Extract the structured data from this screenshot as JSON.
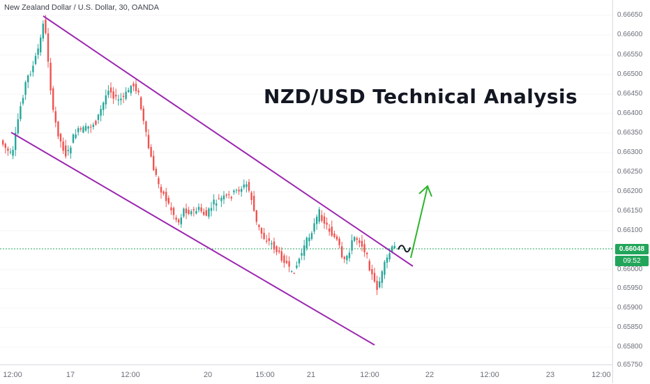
{
  "chart": {
    "symbol_title": "New Zealand Dollar / U.S. Dollar, 30, OANDA",
    "headline": "NZD/USD Technical Analysis",
    "current_price": "0.66048",
    "countdown": "09:52",
    "colors": {
      "up_candle": "#26a69a",
      "down_candle": "#ef5350",
      "channel": "#9c27b0",
      "projection_arrow": "#2db52d",
      "current_price_line": "#22a55a",
      "price_badge": "#22a55a"
    }
  },
  "price_axis": {
    "ticks": [
      "0.66650",
      "0.66600",
      "0.66550",
      "0.66500",
      "0.66450",
      "0.66400",
      "0.66350",
      "0.66300",
      "0.66250",
      "0.66200",
      "0.66150",
      "0.66100",
      "0.66000",
      "0.65950",
      "0.65900",
      "0.65850",
      "0.65800",
      "0.65750"
    ]
  },
  "time_axis": {
    "ticks": [
      "12:00",
      "17",
      "12:00",
      "20",
      "15:00",
      "21",
      "12:00",
      "22",
      "12:00",
      "23",
      "12:00"
    ]
  },
  "drawings": {
    "upper_channel": "channel resistance line",
    "lower_channel": "channel support line",
    "projection": "bullish breakout arrow",
    "wave_mark": "~"
  }
}
